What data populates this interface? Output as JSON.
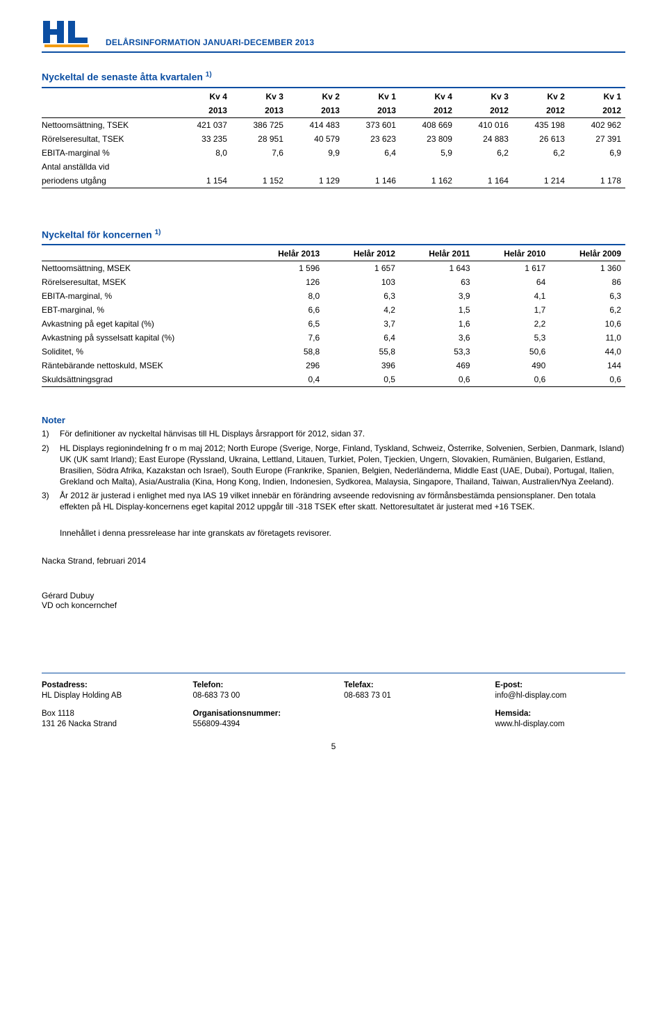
{
  "header": {
    "title": "DELÅRSINFORMATION JANUARI-DECEMBER 2013",
    "logo_letters": "HL",
    "logo_color": "#0b4ea2",
    "logo_stripe_color": "#f39c12"
  },
  "table1": {
    "title": "Nyckeltal de senaste åtta kvartalen",
    "sup": "1)",
    "head1": [
      "",
      "Kv 4",
      "Kv 3",
      "Kv 2",
      "Kv 1",
      "Kv 4",
      "Kv 3",
      "Kv 2",
      "Kv 1"
    ],
    "head2": [
      "",
      "2013",
      "2013",
      "2013",
      "2013",
      "2012",
      "2012",
      "2012",
      "2012"
    ],
    "rows": [
      {
        "label": "Nettoomsättning, TSEK",
        "vals": [
          "421 037",
          "386 725",
          "414 483",
          "373 601",
          "408 669",
          "410 016",
          "435 198",
          "402 962"
        ]
      },
      {
        "label": "Rörelseresultat, TSEK",
        "vals": [
          "33 235",
          "28 951",
          "40 579",
          "23 623",
          "23 809",
          "24 883",
          "26 613",
          "27 391"
        ]
      },
      {
        "label": "EBITA-marginal %",
        "vals": [
          "8,0",
          "7,6",
          "9,9",
          "6,4",
          "5,9",
          "6,2",
          "6,2",
          "6,9"
        ]
      },
      {
        "label": "Antal anställda vid",
        "vals": [
          "",
          "",
          "",
          "",
          "",
          "",
          "",
          ""
        ]
      },
      {
        "label": "periodens utgång",
        "vals": [
          "1 154",
          "1 152",
          "1 129",
          "1 146",
          "1 162",
          "1 164",
          "1 214",
          "1 178"
        ]
      }
    ]
  },
  "table2": {
    "title": "Nyckeltal för koncernen",
    "sup": "1)",
    "head": [
      "",
      "Helår 2013",
      "Helår 2012",
      "Helår 2011",
      "Helår 2010",
      "Helår 2009"
    ],
    "rows": [
      {
        "label": "Nettoomsättning, MSEK",
        "vals": [
          "1 596",
          "1 657",
          "1 643",
          "1 617",
          "1 360"
        ]
      },
      {
        "label": "Rörelseresultat, MSEK",
        "vals": [
          "126",
          "103",
          "63",
          "64",
          "86"
        ]
      },
      {
        "label": "EBITA-marginal, %",
        "vals": [
          "8,0",
          "6,3",
          "3,9",
          "4,1",
          "6,3"
        ]
      },
      {
        "label": "EBT-marginal, %",
        "vals": [
          "6,6",
          "4,2",
          "1,5",
          "1,7",
          "6,2"
        ]
      },
      {
        "label": "Avkastning på eget kapital (%)",
        "vals": [
          "6,5",
          "3,7",
          "1,6",
          "2,2",
          "10,6"
        ]
      },
      {
        "label": "Avkastning på sysselsatt kapital (%)",
        "vals": [
          "7,6",
          "6,4",
          "3,6",
          "5,3",
          "11,0"
        ]
      },
      {
        "label": "Soliditet, %",
        "vals": [
          "58,8",
          "55,8",
          "53,3",
          "50,6",
          "44,0"
        ]
      },
      {
        "label": "Räntebärande nettoskuld, MSEK",
        "vals": [
          "296",
          "396",
          "469",
          "490",
          "144"
        ]
      },
      {
        "label": "Skuldsättningsgrad",
        "vals": [
          "0,4",
          "0,5",
          "0,6",
          "0,6",
          "0,6"
        ]
      }
    ]
  },
  "notes": {
    "title": "Noter",
    "items": [
      {
        "num": "1)",
        "text": "För definitioner av nyckeltal hänvisas till HL Displays årsrapport för 2012, sidan 37."
      },
      {
        "num": "2)",
        "text": "HL Displays regionindelning fr o m maj 2012; North Europe (Sverige, Norge, Finland, Tyskland, Schweiz, Österrike, Solvenien, Serbien, Danmark, Island) UK (UK samt Irland); East Europe (Ryssland, Ukraina, Lettland, Litauen, Turkiet, Polen, Tjeckien, Ungern, Slovakien, Rumänien, Bulgarien, Estland, Brasilien, Södra Afrika, Kazakstan och Israel), South Europe (Frankrike, Spanien, Belgien, Nederländerna, Middle East (UAE, Dubai), Portugal, Italien, Grekland och Malta), Asia/Australia (Kina, Hong Kong, Indien, Indonesien, Sydkorea, Malaysia, Singapore, Thailand, Taiwan, Australien/Nya Zeeland)."
      },
      {
        "num": "3)",
        "text": "År 2012 är justerad i enlighet med nya IAS 19 vilket innebär en förändring avseende redovisning av förmånsbestämda pensionsplaner. Den totala effekten på HL Display-koncernens eget kapital 2012 uppgår till -318 TSEK efter skatt. Nettoresultatet är justerat med +16 TSEK."
      }
    ],
    "review": "Innehållet i denna pressrelease har inte granskats av företagets revisorer."
  },
  "sig": {
    "place_date": "Nacka Strand, februari 2014",
    "name": "Gérard Dubuy",
    "role": "VD och koncernchef"
  },
  "footer": {
    "c1": {
      "l1": "Postadress:",
      "l2": "HL Display Holding AB",
      "l3": "Box 1118",
      "l4": "131 26 Nacka Strand"
    },
    "c2": {
      "l1": "Telefon:",
      "l2": "08-683 73 00",
      "l3": "Organisationsnummer:",
      "l4": "556809-4394"
    },
    "c3": {
      "l1": "Telefax:",
      "l2": "08-683 73 01"
    },
    "c4": {
      "l1": "E-post:",
      "l2": "info@hl-display.com",
      "l3": "Hemsida:",
      "l4": "www.hl-display.com"
    }
  },
  "pagenum": "5"
}
